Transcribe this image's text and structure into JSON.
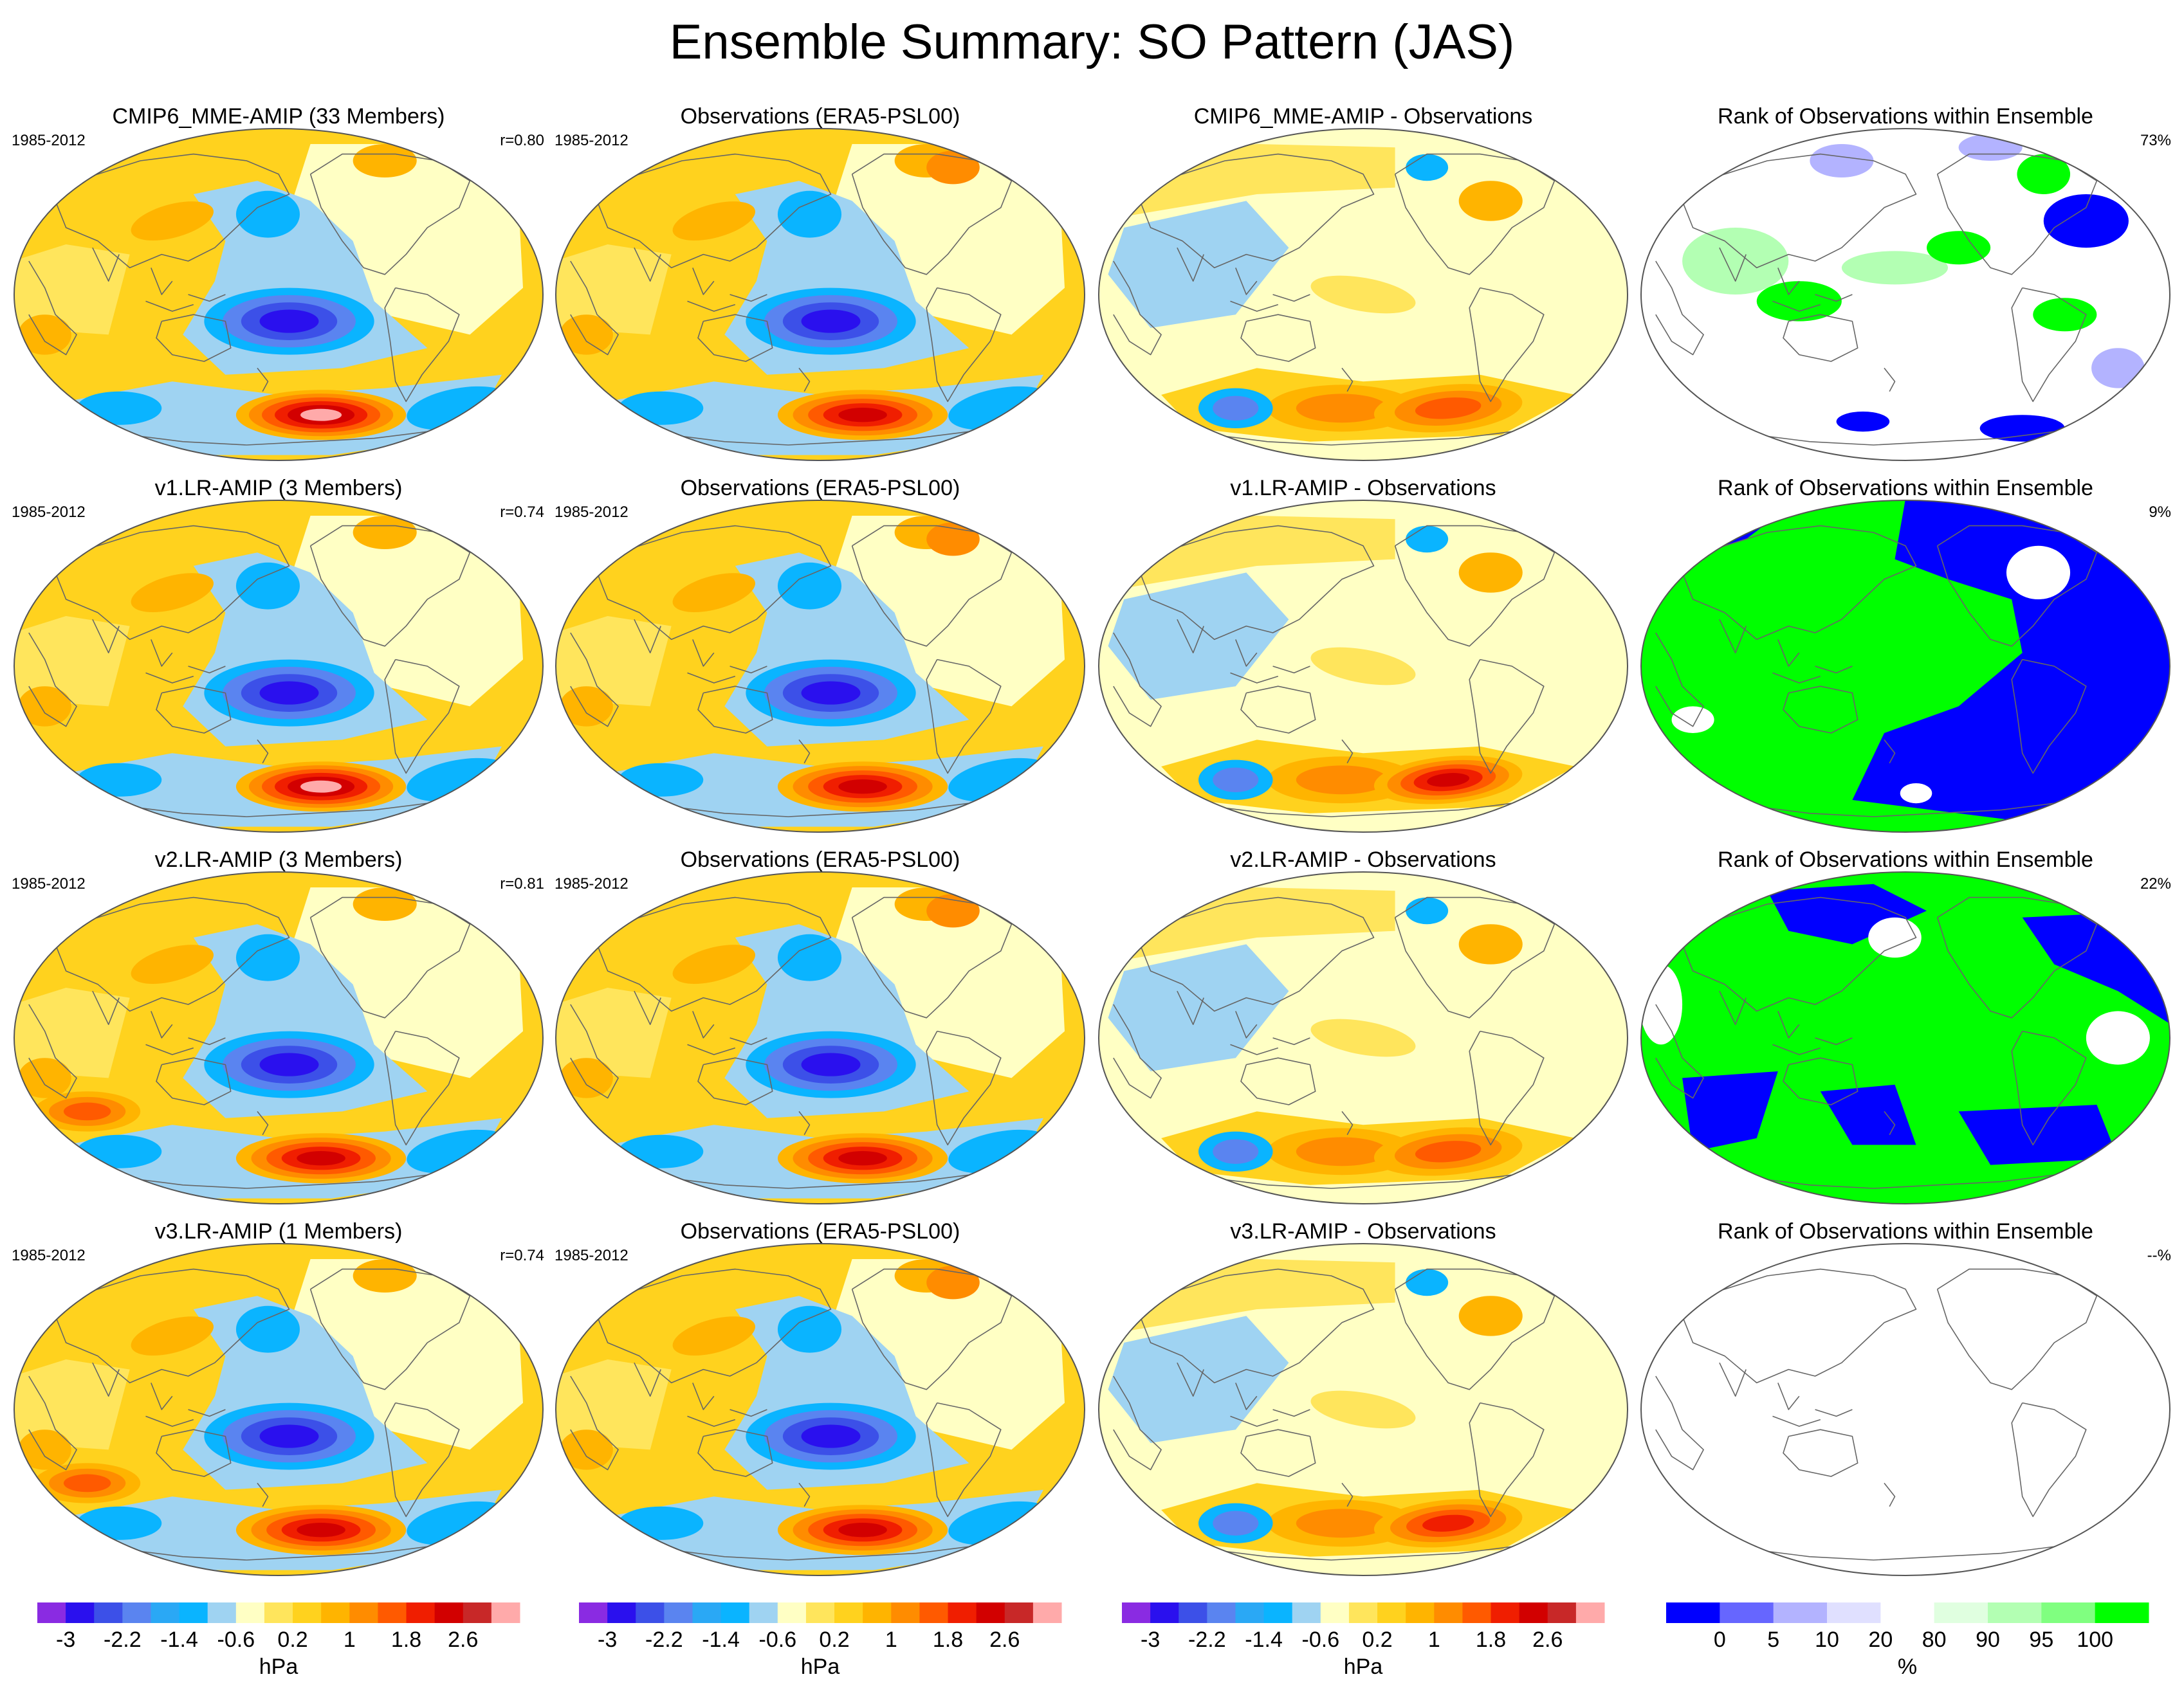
{
  "title": "Ensemble Summary: SO Pattern (JAS)",
  "rows": [
    {
      "model_title": "CMIP6_MME-AMIP (33 Members)",
      "model_period": "1985-2012",
      "model_corr": "r=0.80",
      "obs_title": "Observations (ERA5-PSL00)",
      "obs_period": "1985-2012",
      "diff_title": "CMIP6_MME-AMIP - Observations",
      "rank_title": "Rank of Observations within Ensemble",
      "rank_pct": "73%",
      "model_high": 3.0,
      "model_low": -2.6,
      "diff_high": 1.4,
      "rank_mode": "sparse"
    },
    {
      "model_title": "v1.LR-AMIP (3 Members)",
      "model_period": "1985-2012",
      "model_corr": "r=0.74",
      "obs_title": "Observations (ERA5-PSL00)",
      "obs_period": "1985-2012",
      "diff_title": "v1.LR-AMIP - Observations",
      "rank_title": "Rank of Observations within Ensemble",
      "rank_pct": "9%",
      "model_high": 3.4,
      "model_low": -2.2,
      "diff_high": 2.6,
      "rank_mode": "binary"
    },
    {
      "model_title": "v2.LR-AMIP (3 Members)",
      "model_period": "1985-2012",
      "model_corr": "r=0.81",
      "obs_title": "Observations (ERA5-PSL00)",
      "obs_period": "1985-2012",
      "diff_title": "v2.LR-AMIP - Observations",
      "rank_title": "Rank of Observations within Ensemble",
      "rank_pct": "22%",
      "model_high": 2.6,
      "model_low": -2.6,
      "diff_high": 1.4,
      "rank_mode": "binary"
    },
    {
      "model_title": "v3.LR-AMIP (1 Members)",
      "model_period": "1985-2012",
      "model_corr": "r=0.74",
      "obs_title": "Observations (ERA5-PSL00)",
      "obs_period": "1985-2012",
      "diff_title": "v3.LR-AMIP - Observations",
      "rank_title": "Rank of Observations within Ensemble",
      "rank_pct": "--%",
      "model_high": 2.6,
      "model_low": -3.0,
      "diff_high": 1.8,
      "rank_mode": "empty"
    }
  ],
  "colorbar_hpa": {
    "colors": [
      "#8a2be2",
      "#2a10ee",
      "#3c50e8",
      "#5a84f0",
      "#2aa8f5",
      "#0ab4ff",
      "#9fd3f2",
      "#ffffc4",
      "#ffe55c",
      "#ffd21e",
      "#ffb400",
      "#ff8c00",
      "#ff5a00",
      "#f01e00",
      "#d20000",
      "#c82828",
      "#ffaaaa"
    ],
    "tick_labels": [
      "-3",
      "-2.2",
      "-1.4",
      "-0.6",
      "0.2",
      "1",
      "1.8",
      "2.6"
    ],
    "unit": "hPa"
  },
  "colorbar_rank": {
    "colors": [
      "#0000ff",
      "#6666ff",
      "#b3b3ff",
      "#e0e0ff",
      "#ffffff",
      "#e0ffe0",
      "#b3ffb3",
      "#80ff80",
      "#00ff00"
    ],
    "tick_labels": [
      "0",
      "5",
      "10",
      "20",
      "80",
      "90",
      "95",
      "100"
    ],
    "unit": "%"
  },
  "colors": {
    "rank_low": "#0000ff",
    "rank_high": "#00ff00",
    "coast": "#666666"
  }
}
